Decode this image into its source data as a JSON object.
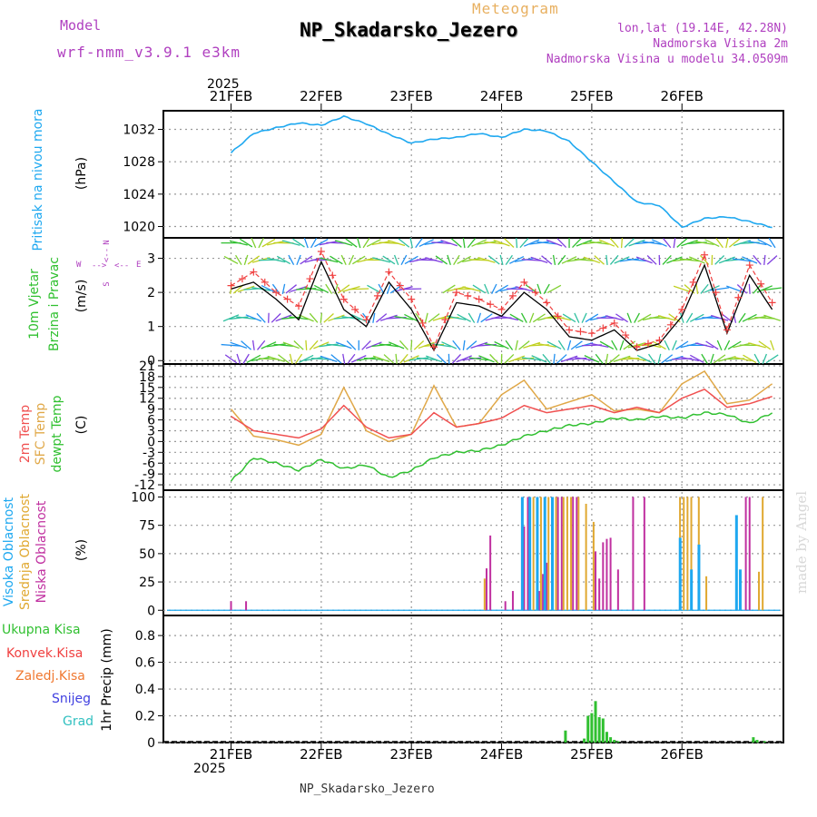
{
  "header": {
    "model_label": "Model",
    "model_name": "wrf-nmm_v3.9.1 e3km",
    "subtitle": "Meteogram",
    "title": "NP_Skadarsko_Jezero",
    "coords": "lon,lat (19.14E, 42.28N)",
    "altitude": "Nadmorska Visina 2m",
    "model_altitude": "Nadmorska Visina u modelu 34.0509m",
    "year": "2025",
    "footer_title": "NP_Skadarsko_Jezero",
    "watermark": "made by Angel"
  },
  "colors": {
    "purple": "#b040c0",
    "orange": "#e8b060",
    "pressure": "#1ea8f0",
    "temp2m": "#f05050",
    "sfc": "#e0a848",
    "dewpt": "#30c030",
    "high": "#1ea8f0",
    "mid": "#e0a830",
    "low": "#c030a0",
    "precip": "#30c030",
    "conv": "#f04040",
    "frz": "#f07830",
    "snow": "#4040e0",
    "grad": "#30c0c0"
  },
  "panel_labels": {
    "pressure": [
      "Pritisak na nivou mora",
      "(hPa)"
    ],
    "wind": [
      "10m Vjetar",
      "Brzina i Pravac",
      "(m/s)"
    ],
    "wind_rose": [
      "N",
      "<--",
      "S",
      "W",
      "E",
      "-->",
      "<--"
    ],
    "temp": [
      "2m Temp",
      "SFC Temp",
      "dewpt Temp",
      "(C)"
    ],
    "cloud": [
      "Visoka Oblacnost",
      "Srednja Oblacnost",
      "Niska Oblacnost",
      "(%)"
    ],
    "precip_legend": [
      "Ukupna Kisa",
      "Konvek.Kisa",
      "Zaledj.Kisa",
      "Snijeg",
      "Grad"
    ],
    "precip_axis": "1hr Precip (mm)"
  },
  "chart_data": {
    "type": "meteogram",
    "days": [
      "21FEB",
      "22FEB",
      "23FEB",
      "24FEB",
      "25FEB",
      "26FEB"
    ],
    "hours": [
      0,
      6,
      12,
      18,
      24,
      30,
      36,
      42,
      48,
      54,
      60,
      66,
      72,
      78,
      84,
      90,
      96,
      102,
      108,
      114,
      120,
      126,
      132,
      138,
      144
    ],
    "pressure": {
      "ylabel": "Pritisak na nivou mora (hPa)",
      "ylim": [
        1018.6,
        1034.3
      ],
      "ticks": [
        1020,
        1024,
        1028,
        1032
      ],
      "values": [
        1029.1,
        1031.5,
        1032.2,
        1032.8,
        1032.5,
        1033.6,
        1032.7,
        1031.4,
        1030.3,
        1030.8,
        1031.0,
        1031.5,
        1031.0,
        1032.0,
        1031.8,
        1030.5,
        1028.0,
        1025.5,
        1023.0,
        1022.6,
        1019.9,
        1021.0,
        1021.2,
        1020.6,
        1019.9
      ]
    },
    "wind": {
      "ylabel": "10m Vjetar (m/s)",
      "ylim": [
        -0.1,
        3.6
      ],
      "ticks": [
        0,
        1,
        2,
        3
      ],
      "speed": [
        2.1,
        2.3,
        1.8,
        1.2,
        2.9,
        1.5,
        1.0,
        2.3,
        1.5,
        0.3,
        1.7,
        1.6,
        1.3,
        2.0,
        1.5,
        0.7,
        0.6,
        0.9,
        0.3,
        0.5,
        1.3,
        2.8,
        0.8,
        2.5,
        1.5
      ],
      "gust": [
        2.2,
        2.6,
        2.0,
        1.6,
        3.2,
        1.8,
        1.2,
        2.6,
        1.8,
        0.4,
        2.0,
        1.8,
        1.5,
        2.3,
        1.7,
        0.9,
        0.8,
        1.1,
        0.4,
        0.6,
        1.5,
        3.1,
        0.9,
        2.8,
        1.7
      ]
    },
    "temperature": {
      "ylabel": "Temp (C)",
      "ylim": [
        -13.5,
        21.5
      ],
      "ticks": [
        -12,
        -9,
        -6,
        -3,
        0,
        3,
        6,
        9,
        12,
        15,
        18,
        21
      ],
      "t2m": [
        7.0,
        3.0,
        2.0,
        1.0,
        3.5,
        10.0,
        4.0,
        1.0,
        2.0,
        8.0,
        4.0,
        5.0,
        6.5,
        10.0,
        8.0,
        9.0,
        10.0,
        8.0,
        9.5,
        8.0,
        12.0,
        14.5,
        9.5,
        10.5,
        12.5
      ],
      "sfc": [
        9.0,
        1.5,
        0.5,
        -1.0,
        2.0,
        15.0,
        3.0,
        0.0,
        2.0,
        15.5,
        4.0,
        5.0,
        13.0,
        17.0,
        9.0,
        11.0,
        13.0,
        8.5,
        9.0,
        8.0,
        16.0,
        19.5,
        10.5,
        11.5,
        16.0
      ],
      "dewpt": [
        -11.0,
        -4.5,
        -6.0,
        -8.0,
        -5.0,
        -7.5,
        -6.5,
        -10.0,
        -8.0,
        -4.5,
        -3.0,
        -2.5,
        -1.0,
        1.5,
        3.0,
        4.5,
        5.0,
        6.5,
        6.0,
        7.0,
        6.5,
        8.0,
        7.5,
        5.0,
        8.0
      ]
    },
    "cloud": {
      "ylabel": "Oblacnost (%)",
      "ylim": [
        -4.6,
        106
      ],
      "ticks": [
        0,
        25,
        50,
        75,
        100
      ],
      "high": [
        [
          78,
          100
        ],
        [
          80,
          100
        ],
        [
          82,
          100
        ],
        [
          84,
          100
        ],
        [
          86,
          100
        ],
        [
          120,
          64
        ],
        [
          123,
          36
        ],
        [
          125,
          58
        ],
        [
          135,
          84
        ],
        [
          136,
          36
        ]
      ],
      "mid": [
        [
          67,
          28
        ],
        [
          79,
          100
        ],
        [
          80,
          100
        ],
        [
          81,
          100
        ],
        [
          82,
          100
        ],
        [
          83,
          100
        ],
        [
          84,
          100
        ],
        [
          85,
          100
        ],
        [
          86,
          100
        ],
        [
          88,
          100
        ],
        [
          89,
          100
        ],
        [
          90,
          100
        ],
        [
          92,
          100
        ],
        [
          94,
          94
        ],
        [
          96,
          78
        ],
        [
          119,
          100
        ],
        [
          120,
          100
        ],
        [
          121,
          100
        ],
        [
          122,
          100
        ],
        [
          124,
          100
        ],
        [
          126,
          30
        ],
        [
          140,
          34
        ],
        [
          141,
          100
        ]
      ],
      "low": [
        [
          0,
          8
        ],
        [
          4,
          8
        ],
        [
          68,
          37
        ],
        [
          69,
          66
        ],
        [
          73,
          8
        ],
        [
          75,
          17
        ],
        [
          78,
          74
        ],
        [
          79,
          100
        ],
        [
          82,
          17
        ],
        [
          83,
          32
        ],
        [
          84,
          42
        ],
        [
          87,
          100
        ],
        [
          88,
          100
        ],
        [
          91,
          100
        ],
        [
          92,
          100
        ],
        [
          97,
          52
        ],
        [
          98,
          28
        ],
        [
          99,
          60
        ],
        [
          100,
          63
        ],
        [
          101,
          64
        ],
        [
          103,
          36
        ],
        [
          107,
          100
        ],
        [
          110,
          100
        ],
        [
          137,
          100
        ],
        [
          138,
          100
        ]
      ]
    },
    "precip": {
      "ylabel": "1hr Precip (mm)",
      "ylim": [
        0,
        0.95
      ],
      "ticks": [
        0,
        0.2,
        0.4,
        0.6,
        0.8
      ],
      "total": [
        [
          89,
          0.09
        ],
        [
          94,
          0.03
        ],
        [
          95,
          0.2
        ],
        [
          96,
          0.22
        ],
        [
          97,
          0.31
        ],
        [
          98,
          0.19
        ],
        [
          99,
          0.18
        ],
        [
          100,
          0.08
        ],
        [
          101,
          0.04
        ],
        [
          102,
          0.02
        ],
        [
          103,
          0.01
        ],
        [
          139,
          0.04
        ],
        [
          140,
          0.02
        ],
        [
          142,
          0.01
        ]
      ]
    }
  }
}
